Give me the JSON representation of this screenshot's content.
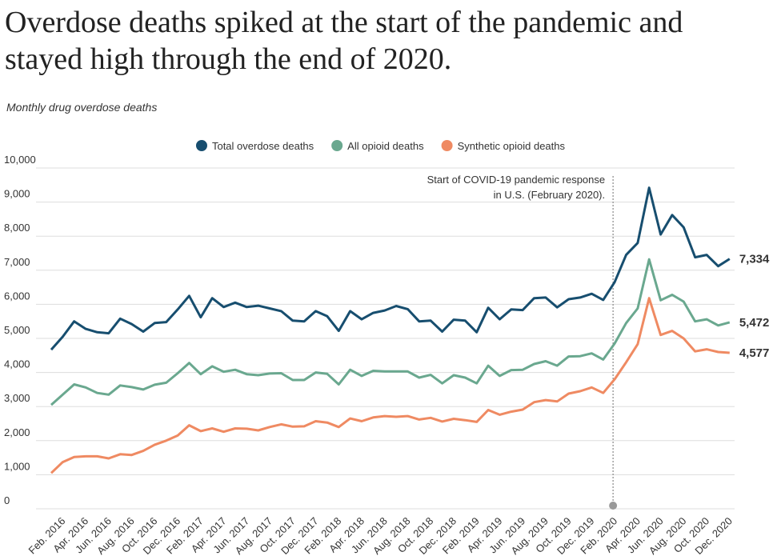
{
  "chart_data": {
    "type": "line",
    "title": [
      "Overdose deaths spiked at the start of the pandemic and",
      "stayed high through the end of 2020."
    ],
    "subtitle": "Monthly drug overdose deaths",
    "categories": [
      null,
      "Feb. 2016",
      null,
      "Apr. 2016",
      null,
      "Jun. 2016",
      null,
      "Aug. 2016",
      null,
      "Oct. 2016",
      null,
      "Dec. 2016",
      null,
      "Feb. 2017",
      null,
      "Apr. 2017",
      null,
      "Jun. 2017",
      null,
      "Aug. 2017",
      null,
      "Oct. 2017",
      null,
      "Dec. 2017",
      null,
      "Feb. 2018",
      null,
      "Apr. 2018",
      null,
      "Jun. 2018",
      null,
      "Aug. 2018",
      null,
      "Oct. 2018",
      null,
      "Dec. 2018",
      null,
      "Feb. 2019",
      null,
      "Apr. 2019",
      null,
      "Jun. 2019",
      null,
      "Aug. 2019",
      null,
      "Oct. 2019",
      null,
      "Dec. 2019",
      null,
      "Feb. 2020",
      null,
      "Apr. 2020",
      null,
      "Jun. 2020",
      null,
      "Aug. 2020",
      null,
      "Oct. 2020",
      null,
      "Dec. 2020"
    ],
    "series": [
      {
        "name": "Total overdose deaths",
        "color": "#174e6f",
        "values": [
          4670,
          5050,
          5500,
          5280,
          5180,
          5150,
          5580,
          5420,
          5200,
          5450,
          5480,
          5850,
          6250,
          5620,
          6180,
          5920,
          6050,
          5920,
          5960,
          5880,
          5800,
          5520,
          5500,
          5800,
          5650,
          5220,
          5800,
          5560,
          5750,
          5820,
          5950,
          5860,
          5500,
          5520,
          5200,
          5550,
          5520,
          5180,
          5900,
          5560,
          5850,
          5830,
          6180,
          6200,
          5910,
          6150,
          6200,
          6310,
          6130,
          6650,
          7450,
          7800,
          9420,
          8050,
          8620,
          8260,
          7380,
          7450,
          7120,
          7334
        ],
        "value_labels": [
          null,
          null,
          null,
          null,
          null,
          null,
          null,
          null,
          null,
          null,
          null,
          null,
          null,
          null,
          null,
          null,
          null,
          null,
          null,
          null,
          null,
          null,
          null,
          null,
          null,
          null,
          null,
          null,
          null,
          null,
          null,
          null,
          null,
          null,
          null,
          null,
          null,
          null,
          null,
          null,
          null,
          null,
          null,
          null,
          null,
          null,
          null,
          null,
          null,
          null,
          null,
          null,
          null,
          null,
          null,
          null,
          null,
          null,
          null,
          "7,334"
        ]
      },
      {
        "name": "All opioid deaths",
        "color": "#6aa88f",
        "values": [
          3050,
          3350,
          3650,
          3560,
          3400,
          3350,
          3620,
          3570,
          3500,
          3640,
          3700,
          3980,
          4280,
          3950,
          4180,
          4020,
          4080,
          3950,
          3920,
          3970,
          3980,
          3780,
          3780,
          4000,
          3960,
          3650,
          4080,
          3900,
          4050,
          4030,
          4030,
          4030,
          3850,
          3930,
          3680,
          3920,
          3850,
          3680,
          4200,
          3900,
          4070,
          4080,
          4250,
          4330,
          4200,
          4470,
          4480,
          4560,
          4380,
          4850,
          5450,
          5880,
          7320,
          6120,
          6280,
          6080,
          5500,
          5560,
          5380,
          5472
        ],
        "value_labels": [
          null,
          null,
          null,
          null,
          null,
          null,
          null,
          null,
          null,
          null,
          null,
          null,
          null,
          null,
          null,
          null,
          null,
          null,
          null,
          null,
          null,
          null,
          null,
          null,
          null,
          null,
          null,
          null,
          null,
          null,
          null,
          null,
          null,
          null,
          null,
          null,
          null,
          null,
          null,
          null,
          null,
          null,
          null,
          null,
          null,
          null,
          null,
          null,
          null,
          null,
          null,
          null,
          null,
          null,
          null,
          null,
          null,
          null,
          null,
          "5,472"
        ]
      },
      {
        "name": "Synthetic opioid deaths",
        "color": "#ef8a62",
        "values": [
          1050,
          1370,
          1520,
          1540,
          1540,
          1480,
          1600,
          1580,
          1700,
          1880,
          2000,
          2150,
          2450,
          2280,
          2360,
          2260,
          2360,
          2350,
          2300,
          2400,
          2480,
          2410,
          2420,
          2570,
          2530,
          2400,
          2650,
          2570,
          2680,
          2720,
          2700,
          2720,
          2620,
          2670,
          2560,
          2640,
          2600,
          2550,
          2900,
          2760,
          2850,
          2910,
          3130,
          3190,
          3150,
          3380,
          3450,
          3560,
          3400,
          3800,
          4300,
          4830,
          6180,
          5100,
          5220,
          5000,
          4620,
          4680,
          4600,
          4577
        ],
        "value_labels": [
          null,
          null,
          null,
          null,
          null,
          null,
          null,
          null,
          null,
          null,
          null,
          null,
          null,
          null,
          null,
          null,
          null,
          null,
          null,
          null,
          null,
          null,
          null,
          null,
          null,
          null,
          null,
          null,
          null,
          null,
          null,
          null,
          null,
          null,
          null,
          null,
          null,
          null,
          null,
          null,
          null,
          null,
          null,
          null,
          null,
          null,
          null,
          null,
          null,
          null,
          null,
          null,
          null,
          null,
          null,
          null,
          null,
          null,
          null,
          "4,577"
        ]
      }
    ],
    "annotation": {
      "lines": [
        "Start of COVID-19 pandemic response",
        "in U.S. (February 2020)."
      ],
      "category": "Feb. 2020"
    },
    "ylim": [
      0,
      10000
    ],
    "yticks": [
      0,
      {
        "value": 1000,
        "label": "1,000"
      },
      {
        "value": 2000,
        "label": "2,000"
      },
      {
        "value": 3000,
        "label": "3,000"
      },
      {
        "value": 4000,
        "label": "4,000"
      },
      {
        "value": 5000,
        "label": "5,000"
      },
      {
        "value": 6000,
        "label": "6,000"
      },
      {
        "value": 7000,
        "label": "7,000"
      },
      {
        "value": 8000,
        "label": "8,000"
      },
      {
        "value": 9000,
        "label": "9,000"
      },
      {
        "value": 10000,
        "label": "10,000"
      }
    ],
    "grid": true,
    "legend": "top"
  }
}
